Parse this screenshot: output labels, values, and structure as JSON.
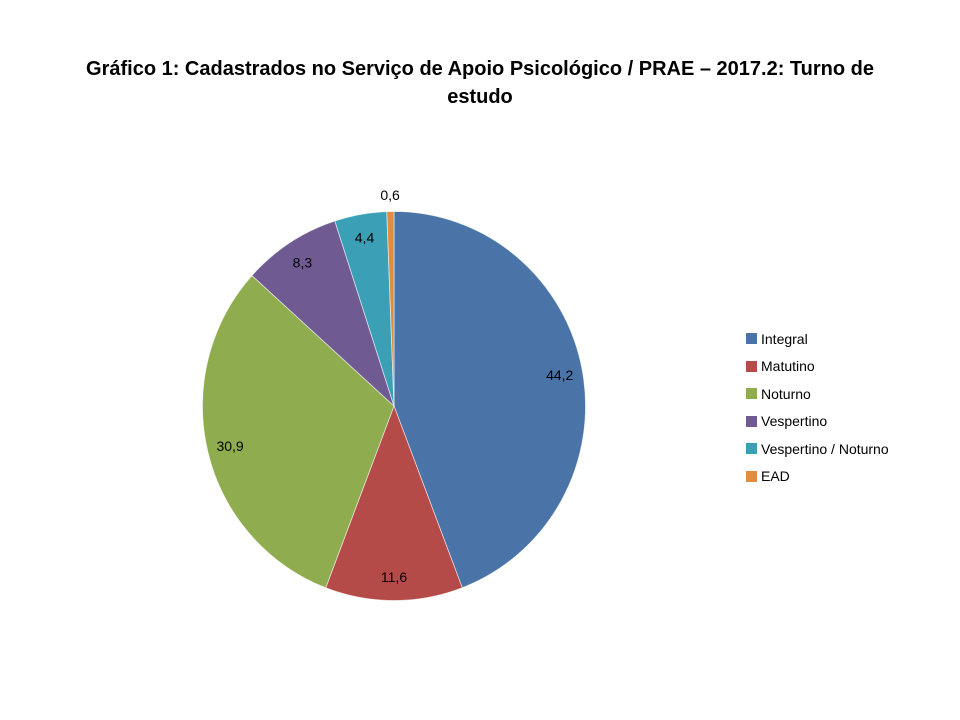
{
  "title": {
    "text": "Gráfico 1: Cadastrados no Serviço de Apoio Psicológico / PRAE – 2017.2: Turno de estudo"
  },
  "chart_data": {
    "type": "pie",
    "title": "Gráfico 1: Cadastrados no Serviço de Apoio Psicológico / PRAE – 2017.2: Turno de estudo",
    "categories": [
      "Integral",
      "Matutino",
      "Noturno",
      "Vespertino",
      "Vespertino / Noturno",
      "EAD"
    ],
    "values": [
      44.2,
      11.6,
      30.9,
      8.3,
      4.4,
      0.6
    ],
    "labels": [
      "44,2",
      "11,6",
      "30,9",
      "8,3",
      "4,4",
      "0,6"
    ],
    "colors": [
      "#4A74A8",
      "#B54B48",
      "#8FAC4F",
      "#6F5B92",
      "#3BA0B5",
      "#E08D3F"
    ],
    "label_placement": [
      "inside",
      "inside",
      "inside",
      "inside",
      "inside",
      "outside"
    ],
    "label_color": "#000000",
    "slice_border_color": "#ffffff",
    "start_angle_deg": 0,
    "direction": "clockwise",
    "legend_position": "right",
    "decimal_separator": ",",
    "background": "#ffffff"
  }
}
